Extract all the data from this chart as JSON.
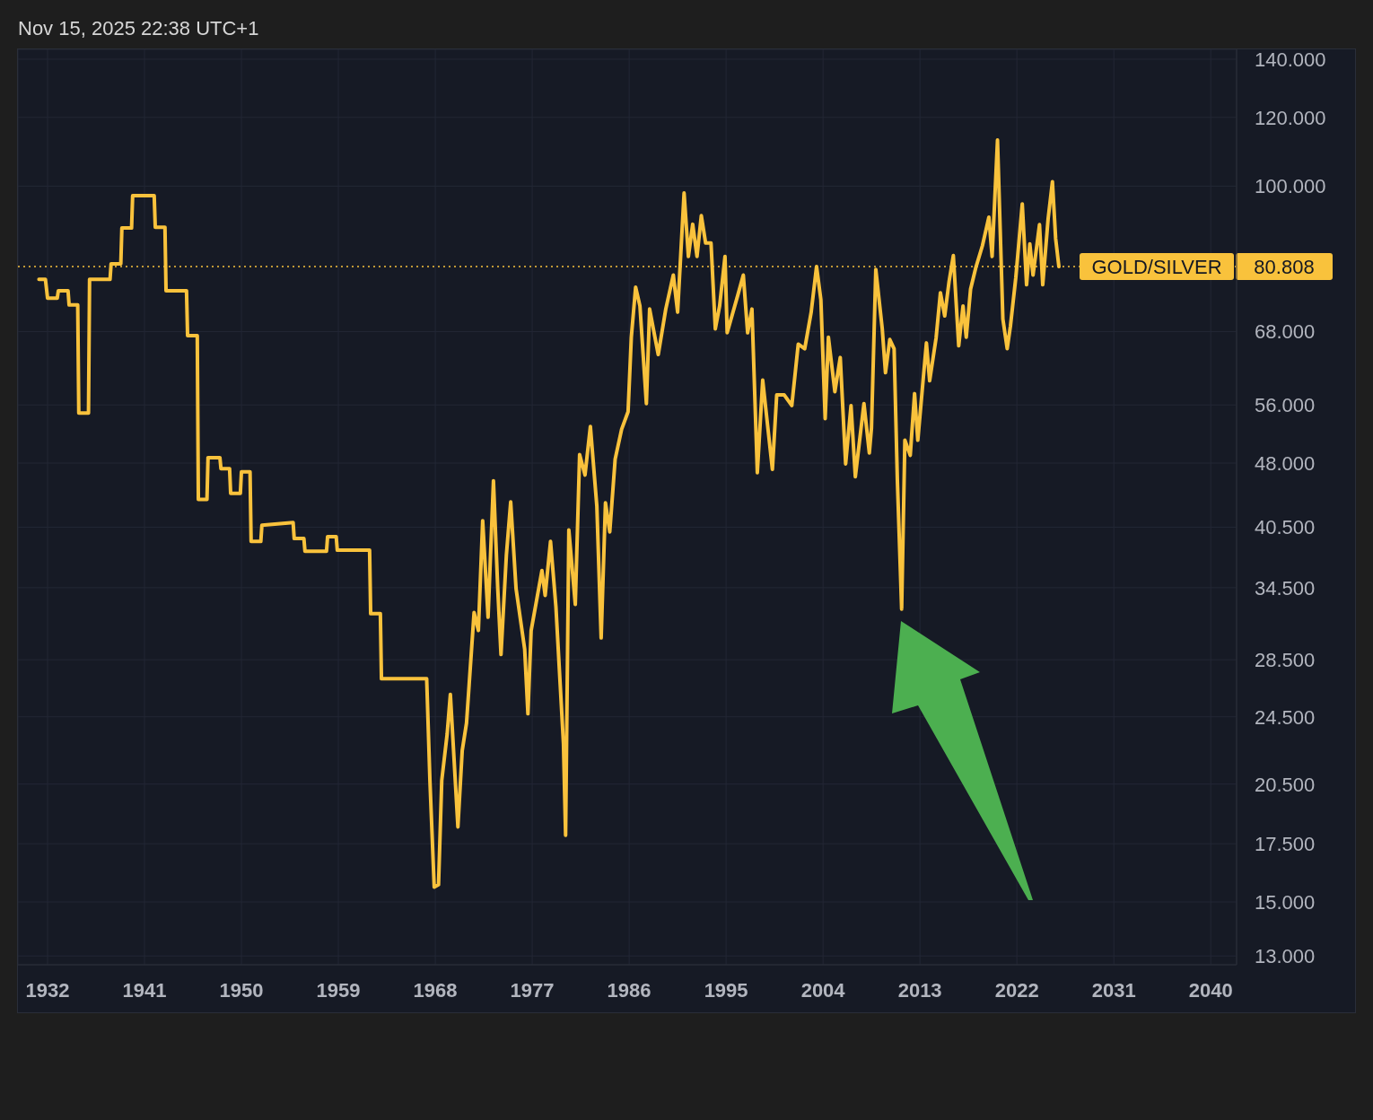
{
  "chart_data": {
    "type": "line",
    "annotations": [
      "Nov 15, 2025 22:38 UTC+1"
    ],
    "x": [
      1931.2,
      1931.8,
      1932.0,
      1932.9,
      1933.0,
      1933.9,
      1934.0,
      1934.8,
      1934.9,
      1935.8,
      1935.9,
      1937.8,
      1937.9,
      1938.8,
      1938.9,
      1939.8,
      1939.9,
      1941.9,
      1942.0,
      1942.9,
      1943.0,
      1944.9,
      1945.0,
      1945.9,
      1946.0,
      1946.8,
      1946.9,
      1948.0,
      1948.1,
      1948.9,
      1949.0,
      1949.9,
      1950.0,
      1950.8,
      1950.9,
      1951.8,
      1951.9,
      1954.8,
      1954.9,
      1955.8,
      1955.9,
      1957.9,
      1958.0,
      1958.8,
      1958.9,
      1961.9,
      1962.0,
      1962.9,
      1963.0,
      1967.2,
      1967.5,
      1967.9,
      1968.3,
      1968.6,
      1969.1,
      1969.4,
      1970.1,
      1970.5,
      1970.9,
      1971.6,
      1972.0,
      1972.4,
      1972.9,
      1973.4,
      1973.8,
      1974.1,
      1974.6,
      1975.0,
      1975.5,
      1976.3,
      1976.6,
      1976.9,
      1977.9,
      1978.2,
      1978.7,
      1979.2,
      1979.9,
      1980.1,
      1980.4,
      1981.0,
      1981.4,
      1981.9,
      1982.4,
      1983.0,
      1983.4,
      1983.8,
      1984.2,
      1984.7,
      1985.3,
      1985.9,
      1986.2,
      1986.6,
      1987.0,
      1987.6,
      1987.9,
      1988.7,
      1989.4,
      1990.1,
      1990.5,
      1991.1,
      1991.5,
      1991.9,
      1992.3,
      1992.7,
      1993.1,
      1993.6,
      1994.0,
      1994.4,
      1994.9,
      1995.1,
      1996.1,
      1996.6,
      1997.0,
      1997.4,
      1997.9,
      1998.4,
      1998.9,
      1999.3,
      1999.7,
      2000.4,
      2001.1,
      2001.7,
      2002.3,
      2002.9,
      2003.4,
      2003.8,
      2004.2,
      2004.5,
      2005.1,
      2005.6,
      2006.1,
      2006.6,
      2007.0,
      2007.8,
      2008.3,
      2008.5,
      2008.9,
      2009.5,
      2009.8,
      2010.2,
      2010.6,
      2010.9,
      2011.3,
      2011.6,
      2012.1,
      2012.5,
      2012.8,
      2013.6,
      2013.9,
      2014.5,
      2014.9,
      2015.3,
      2015.7,
      2016.1,
      2016.6,
      2017.0,
      2017.3,
      2017.7,
      2018.2,
      2018.8,
      2019.4,
      2019.7,
      2020.2,
      2020.7,
      2021.1,
      2021.4,
      2021.9,
      2022.5,
      2022.9,
      2023.2,
      2023.5,
      2024.1,
      2024.4,
      2024.9,
      2025.3,
      2025.6,
      2025.9
    ],
    "series": [
      {
        "name": "GOLD/SILVER",
        "color": "#f9c23c",
        "values": [
          78.1,
          78.1,
          74.3,
          74.3,
          75.8,
          75.8,
          73.0,
          73.0,
          54.8,
          54.8,
          78.1,
          78.1,
          81.4,
          81.4,
          89.5,
          89.5,
          97.5,
          97.5,
          89.7,
          89.7,
          75.8,
          75.8,
          67.3,
          67.3,
          43.6,
          43.6,
          48.7,
          48.7,
          47.3,
          47.3,
          44.3,
          44.3,
          46.9,
          46.9,
          39.0,
          39.0,
          40.7,
          41.0,
          39.3,
          39.3,
          38.0,
          38.0,
          39.5,
          39.5,
          38.1,
          38.1,
          32.2,
          32.2,
          27.1,
          27.1,
          20.7,
          15.6,
          15.7,
          20.7,
          23.4,
          26.0,
          18.3,
          22.4,
          24.1,
          32.3,
          30.8,
          41.2,
          31.9,
          45.8,
          34.4,
          28.9,
          37.6,
          43.3,
          34.4,
          29.3,
          24.7,
          30.8,
          36.1,
          33.8,
          39.0,
          32.8,
          22.8,
          17.9,
          40.2,
          33.0,
          49.1,
          46.5,
          52.9,
          42.8,
          30.2,
          43.2,
          40.0,
          48.5,
          52.5,
          55.0,
          67.0,
          76.5,
          72.8,
          56.2,
          72.2,
          64.0,
          72.2,
          79.0,
          71.6,
          98.2,
          83.0,
          90.4,
          83.0,
          92.5,
          86.0,
          86.0,
          68.5,
          72.8,
          83.0,
          67.8,
          75.0,
          79.0,
          67.8,
          72.2,
          46.8,
          59.8,
          52.4,
          47.2,
          57.5,
          57.5,
          55.9,
          65.8,
          65.0,
          71.6,
          80.8,
          74.0,
          54.0,
          67.0,
          58.0,
          63.5,
          47.9,
          55.9,
          46.3,
          56.2,
          49.3,
          52.7,
          80.2,
          68.5,
          61.0,
          66.6,
          65.0,
          46.0,
          32.6,
          51.0,
          49.0,
          57.7,
          51.0,
          66.0,
          59.7,
          66.9,
          75.4,
          70.9,
          77.6,
          83.2,
          65.5,
          72.8,
          67.0,
          76.1,
          80.7,
          85.4,
          92.1,
          83.0,
          113.0,
          70.3,
          65.0,
          69.0,
          78.5,
          95.4,
          77.0,
          85.8,
          79.0,
          90.3,
          77.0,
          91.7,
          101.2,
          87.0,
          80.808
        ]
      }
    ],
    "xlim": [
      1929.25,
      2042.4
    ],
    "xticks": [
      1932,
      1941,
      1950,
      1959,
      1968,
      1977,
      1986,
      1995,
      2004,
      2013,
      2022,
      2031,
      2040
    ],
    "ylim": [
      12.7,
      143.7
    ],
    "yticks": [
      {
        "value": 13,
        "label": "13.000"
      },
      {
        "value": 15,
        "label": "15.000"
      },
      {
        "value": 17.5,
        "label": "17.500"
      },
      {
        "value": 20.5,
        "label": "20.500"
      },
      {
        "value": 24.5,
        "label": "24.500"
      },
      {
        "value": 28.5,
        "label": "28.500"
      },
      {
        "value": 34.5,
        "label": "34.500"
      },
      {
        "value": 40.5,
        "label": "40.500"
      },
      {
        "value": 48,
        "label": "48.000"
      },
      {
        "value": 56,
        "label": "56.000"
      },
      {
        "value": 68,
        "label": "68.000"
      },
      {
        "value": 100,
        "label": "100.000"
      },
      {
        "value": 120,
        "label": "120.000"
      },
      {
        "value": 140,
        "label": "140.000"
      }
    ],
    "log": "y",
    "grid": true,
    "marker": "none",
    "ref_lines": [
      {
        "axis": "y",
        "value": 80.808,
        "label": "80.808",
        "color": "#f9c23c",
        "line_style": "dotted"
      }
    ]
  }
}
